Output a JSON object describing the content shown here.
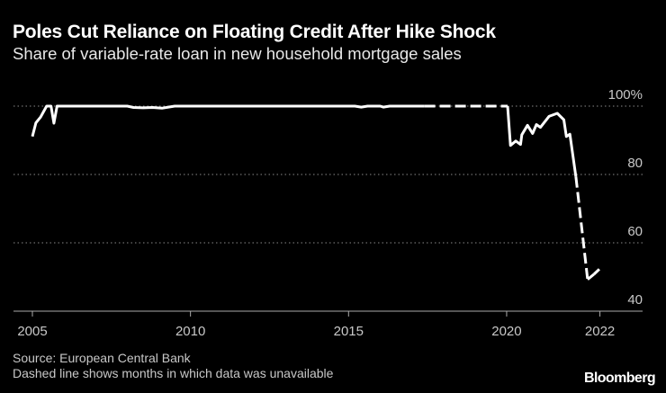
{
  "title": "Poles Cut Reliance on Floating Credit After Hike Shock",
  "subtitle": "Share of variable-rate loan in new household mortgage sales",
  "source": "Source: European Central Bank",
  "note": "Dashed line shows months in which data was unavailable",
  "logo": "Bloomberg",
  "colors": {
    "background": "#000000",
    "line": "#ffffff",
    "grid": "#8a8a8a",
    "text": "#c8c8c8"
  },
  "chart_data": {
    "type": "line",
    "title": "Poles Cut Reliance on Floating Credit After Hike Shock",
    "subtitle": "Share of variable-rate loan in new household mortgage sales",
    "xlabel": "",
    "ylabel": "",
    "xlim": [
      2005,
      2023
    ],
    "ylim": [
      40,
      100
    ],
    "grid": true,
    "x_ticks": [
      {
        "value": 2005,
        "label": "2005"
      },
      {
        "value": 2010,
        "label": "2010"
      },
      {
        "value": 2015,
        "label": "2015"
      },
      {
        "value": 2020,
        "label": "2020"
      },
      {
        "value": 2022.95,
        "label": "2022"
      }
    ],
    "y_ticks": [
      {
        "value": 100,
        "label": "100%"
      },
      {
        "value": 80,
        "label": "80"
      },
      {
        "value": 60,
        "label": "60"
      },
      {
        "value": 40,
        "label": "40"
      }
    ],
    "segments": [
      {
        "style": "solid",
        "x": [
          2005.0,
          2005.11,
          2005.26,
          2005.45,
          2005.59,
          2005.68,
          2005.78,
          2006.0,
          2008.0,
          2008.2,
          2008.5,
          2008.8,
          2009.1,
          2009.3,
          2009.5,
          2015.2,
          2015.4,
          2015.6,
          2016.0,
          2016.1,
          2016.3,
          2017.4
        ],
        "y": [
          91.1,
          95.1,
          96.8,
          100,
          100,
          95,
          100,
          100,
          100,
          99.6,
          99.5,
          99.6,
          99.4,
          99.7,
          100,
          100,
          99.7,
          100,
          100,
          99.7,
          100,
          100
        ]
      },
      {
        "style": "dashed",
        "x": [
          2017.4,
          2020.03
        ],
        "y": [
          100,
          100
        ]
      },
      {
        "style": "solid",
        "x": [
          2020.03,
          2020.12,
          2020.29,
          2020.44,
          2020.48,
          2020.66,
          2020.82,
          2020.94,
          2021.07,
          2021.34,
          2021.6,
          2021.81,
          2021.89,
          2022.0,
          2022.19
        ],
        "y": [
          100,
          88.5,
          89.8,
          88.8,
          91.6,
          94.4,
          92,
          94.6,
          93.8,
          97,
          97.9,
          96,
          91.1,
          91.8,
          79.3
        ]
      },
      {
        "style": "dashed",
        "x": [
          2022.19,
          2022.56
        ],
        "y": [
          79.3,
          49.3
        ]
      },
      {
        "style": "solid",
        "x": [
          2022.56,
          2022.76
        ],
        "y": [
          49.3,
          50.8
        ]
      },
      {
        "style": "dashed",
        "x": [
          2022.76,
          2022.93
        ],
        "y": [
          50.8,
          52.3
        ]
      }
    ]
  }
}
